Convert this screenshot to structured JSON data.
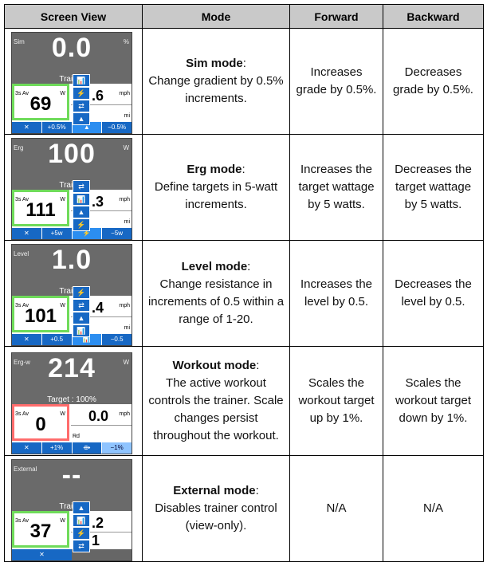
{
  "headers": [
    "Screen View",
    "Mode",
    "Forward",
    "Backward"
  ],
  "rows": [
    {
      "screen": {
        "mode": "Sim",
        "unit": "%",
        "big": "0.0",
        "sub": "Trainer",
        "box_label": "3s Av",
        "box_w": "W",
        "value": "69",
        "right_value": ".6",
        "right_unit_top": "mph",
        "right_unit_bottom": "mi",
        "stack": [
          "📊",
          "⚡",
          "⇄",
          "▲"
        ],
        "bar": [
          "✕",
          "+0.5%",
          "▲",
          "−0.5%"
        ]
      },
      "mode_title": "Sim mode",
      "mode_desc": "Change gradient by 0.5% increments.",
      "forward": "Increases grade by 0.5%.",
      "backward": "Decreases grade by 0.5%."
    },
    {
      "screen": {
        "mode": "Erg",
        "unit": "W",
        "big": "100",
        "sub": "Trainer",
        "box_label": "3s Av",
        "box_w": "W",
        "value": "111",
        "right_value": ".3",
        "right_unit_top": "mph",
        "right_unit_bottom": "mi",
        "stack": [
          "⇄",
          "📊",
          "▲",
          "⚡"
        ],
        "bar": [
          "✕",
          "+5w",
          "⚡",
          "−5w"
        ]
      },
      "mode_title": "Erg mode",
      "mode_desc": "Define targets in 5-watt increments.",
      "forward": "Increases the target wattage by 5 watts.",
      "backward": "Decreases the target wattage by 5 watts."
    },
    {
      "screen": {
        "mode": "Level",
        "unit": "",
        "big": "1.0",
        "sub": "Trainer",
        "box_label": "3s Av",
        "box_w": "W",
        "value": "101",
        "right_value": ".4",
        "right_unit_top": "mph",
        "right_unit_bottom": "mi",
        "stack": [
          "⚡",
          "⇄",
          "▲",
          "📊"
        ],
        "bar": [
          "✕",
          "+0.5",
          "📊",
          "−0.5"
        ]
      },
      "mode_title": "Level mode",
      "mode_desc": "Change resistance in increments of 0.5 within a range of 1-20.",
      "forward": "Increases the level by 0.5.",
      "backward": "Decreases the level by 0.5."
    },
    {
      "screen": {
        "mode": "Erg-w",
        "unit": "W",
        "big": "214",
        "sub": "Target : 100%",
        "box_label": "3s Av",
        "box_w": "W",
        "value": "0",
        "right_value": "0.0",
        "right_unit_top": "mph",
        "right_unit_bottom": "",
        "right_rd": "Rd",
        "stack": [],
        "bar": [
          "✕",
          "+1%",
          "⟴",
          "−1%"
        ]
      },
      "mode_title": "Workout mode",
      "mode_desc": "The active workout controls the trainer. Scale changes persist throughout the workout.",
      "forward": "Scales the workout target up by 1%.",
      "backward": "Scales the workout target down by 1%."
    },
    {
      "screen": {
        "mode": "External",
        "unit": "",
        "big": "--",
        "sub": "Trainer",
        "box_label": "3s Av",
        "box_w": "W",
        "value": "37",
        "right_value": ".2",
        "right_value2": "1",
        "right_unit_top": "",
        "right_unit_bottom": "",
        "stack": [
          "▲",
          "📊",
          "⚡",
          "⇄"
        ],
        "bar": [
          "✕"
        ]
      },
      "mode_title": "External mode",
      "mode_desc": "Disables trainer control (view-only).",
      "forward": "N/A",
      "backward": "N/A"
    }
  ]
}
